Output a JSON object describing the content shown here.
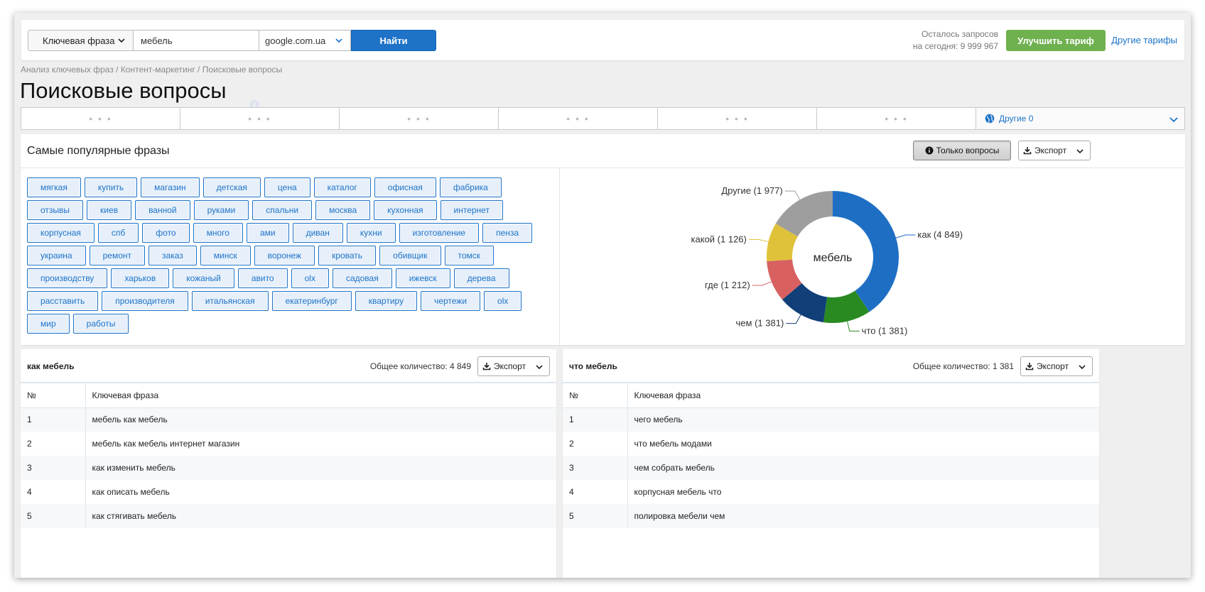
{
  "search": {
    "type_label": "Ключевая фраза",
    "keyword_value": "мебель",
    "engine_label": "google.com.ua",
    "find_label": "Найти"
  },
  "account": {
    "quota_line1": "Осталось запросов",
    "quota_line2": "на сегодня: 9 999 967",
    "upgrade_label": "Улучшить тариф",
    "other_plans_label": "Другие тарифы"
  },
  "breadcrumb": "Анализ ключевых фраз / Контент-маркетинг / Поисковые вопросы",
  "page_title": "Поисковые вопросы",
  "tabs": {
    "placeholders": [
      "• • •",
      "• • •",
      "• • •",
      "• • •",
      "• • •",
      "• • •"
    ],
    "other_label": "Другие 0"
  },
  "popular": {
    "title": "Самые популярные фразы",
    "only_questions_label": "Только вопросы",
    "export_label": "Экспорт",
    "tags": [
      "мягкая",
      "купить",
      "магазин",
      "детская",
      "цена",
      "каталог",
      "офисная",
      "фабрика",
      "отзывы",
      "киев",
      "ванной",
      "руками",
      "спальни",
      "москва",
      "кухонная",
      "интернет",
      "корпусная",
      "спб",
      "фото",
      "много",
      "ами",
      "диван",
      "кухни",
      "изготовление",
      "пенза",
      "украина",
      "ремонт",
      "заказ",
      "минск",
      "воронеж",
      "кровать",
      "обивщик",
      "томск",
      "производству",
      "харьков",
      "кожаный",
      "авито",
      "olx",
      "садовая",
      "ижевск",
      "дерева",
      "расставить",
      "производителя",
      "итальянская",
      "екатеринбург",
      "квартиру",
      "чертежи",
      "olx",
      "мир",
      "работы"
    ]
  },
  "chart_data": {
    "type": "pie",
    "center_label": "мебель",
    "slices": [
      {
        "label": "как (4 849)",
        "value": 4849,
        "color": "#1e6fc4"
      },
      {
        "label": "что (1 381)",
        "value": 1381,
        "color": "#2a8a22"
      },
      {
        "label": "чем (1 381)",
        "value": 1381,
        "color": "#113f78"
      },
      {
        "label": "где (1 212)",
        "value": 1212,
        "color": "#d86060"
      },
      {
        "label": "какой (1 126)",
        "value": 1126,
        "color": "#dfc23a"
      },
      {
        "label": "Другие (1 977)",
        "value": 1977,
        "color": "#9e9e9e"
      }
    ]
  },
  "tables": [
    {
      "title": "как мебель",
      "total": "Общее количество: 4 849",
      "export_label": "Экспорт",
      "col_num": "№",
      "col_phrase": "Ключевая фраза",
      "rows": [
        {
          "n": "1",
          "phrase": "мебель как мебель"
        },
        {
          "n": "2",
          "phrase": "мебель как мебель интернет магазин"
        },
        {
          "n": "3",
          "phrase": "как изменить мебель"
        },
        {
          "n": "4",
          "phrase": "как описать мебель"
        },
        {
          "n": "5",
          "phrase": "как стягивать мебель"
        }
      ]
    },
    {
      "title": "что мебель",
      "total": "Общее количество: 1 381",
      "export_label": "Экспорт",
      "col_num": "№",
      "col_phrase": "Ключевая фраза",
      "rows": [
        {
          "n": "1",
          "phrase": "чего мебель"
        },
        {
          "n": "2",
          "phrase": "что мебель модами"
        },
        {
          "n": "3",
          "phrase": "чем собрать мебель"
        },
        {
          "n": "4",
          "phrase": "корпусная мебель что"
        },
        {
          "n": "5",
          "phrase": "полировка мебели чем"
        }
      ]
    }
  ]
}
